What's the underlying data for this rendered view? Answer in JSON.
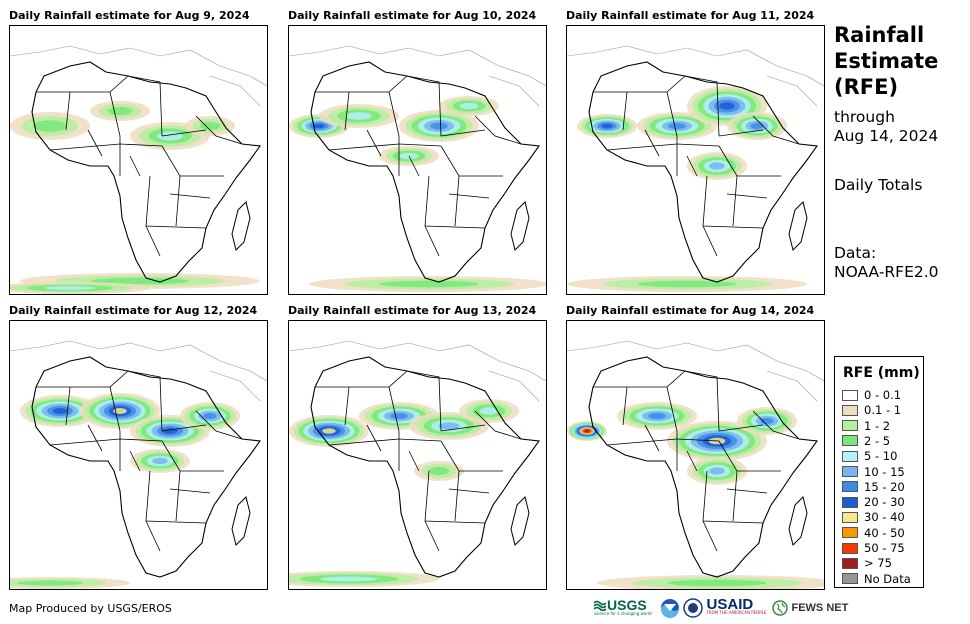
{
  "panels": [
    {
      "title": "Daily Rainfall estimate for Aug 9, 2024",
      "date": "Aug 9, 2024"
    },
    {
      "title": "Daily Rainfall estimate for Aug 10, 2024",
      "date": "Aug 10, 2024"
    },
    {
      "title": "Daily Rainfall estimate for Aug 11, 2024",
      "date": "Aug 11, 2024"
    },
    {
      "title": "Daily Rainfall estimate for Aug 12, 2024",
      "date": "Aug 12, 2024"
    },
    {
      "title": "Daily Rainfall estimate for Aug 13, 2024",
      "date": "Aug 13, 2024"
    },
    {
      "title": "Daily Rainfall estimate for Aug 14, 2024",
      "date": "Aug 14, 2024"
    }
  ],
  "side": {
    "title_line1": "Rainfall",
    "title_line2": "Estimate",
    "title_line3": "(RFE)",
    "through_label": "through",
    "through_date": "Aug 14, 2024",
    "totals": "Daily Totals",
    "data_label": "Data:",
    "data_source": "NOAA-RFE2.0"
  },
  "legend": {
    "title": "RFE (mm)",
    "items": [
      {
        "label": "0 - 0.1",
        "color": "#ffffff"
      },
      {
        "label": "0.1 - 1",
        "color": "#f0dcc0"
      },
      {
        "label": "1 - 2",
        "color": "#b4f0a0"
      },
      {
        "label": "2 - 5",
        "color": "#78e678"
      },
      {
        "label": "5 - 10",
        "color": "#b4f0fa"
      },
      {
        "label": "10 - 15",
        "color": "#78b4f0"
      },
      {
        "label": "15 - 20",
        "color": "#3c8ce6"
      },
      {
        "label": "20 - 30",
        "color": "#1e5ad2"
      },
      {
        "label": "30 - 40",
        "color": "#fae68c"
      },
      {
        "label": "40 - 50",
        "color": "#fa9600"
      },
      {
        "label": "50 - 75",
        "color": "#f03c00"
      },
      {
        "label": "> 75",
        "color": "#a01e1e"
      },
      {
        "label": "No Data",
        "color": "#969696"
      }
    ]
  },
  "footer": {
    "credit": "Map Produced by USGS/EROS"
  },
  "logos": {
    "usgs": "USGS",
    "usgs_tagline": "science for a changing world",
    "usaid": "USAID",
    "usaid_tagline": "FROM THE AMERICAN PEOPLE",
    "fews": "FEWS NET"
  }
}
